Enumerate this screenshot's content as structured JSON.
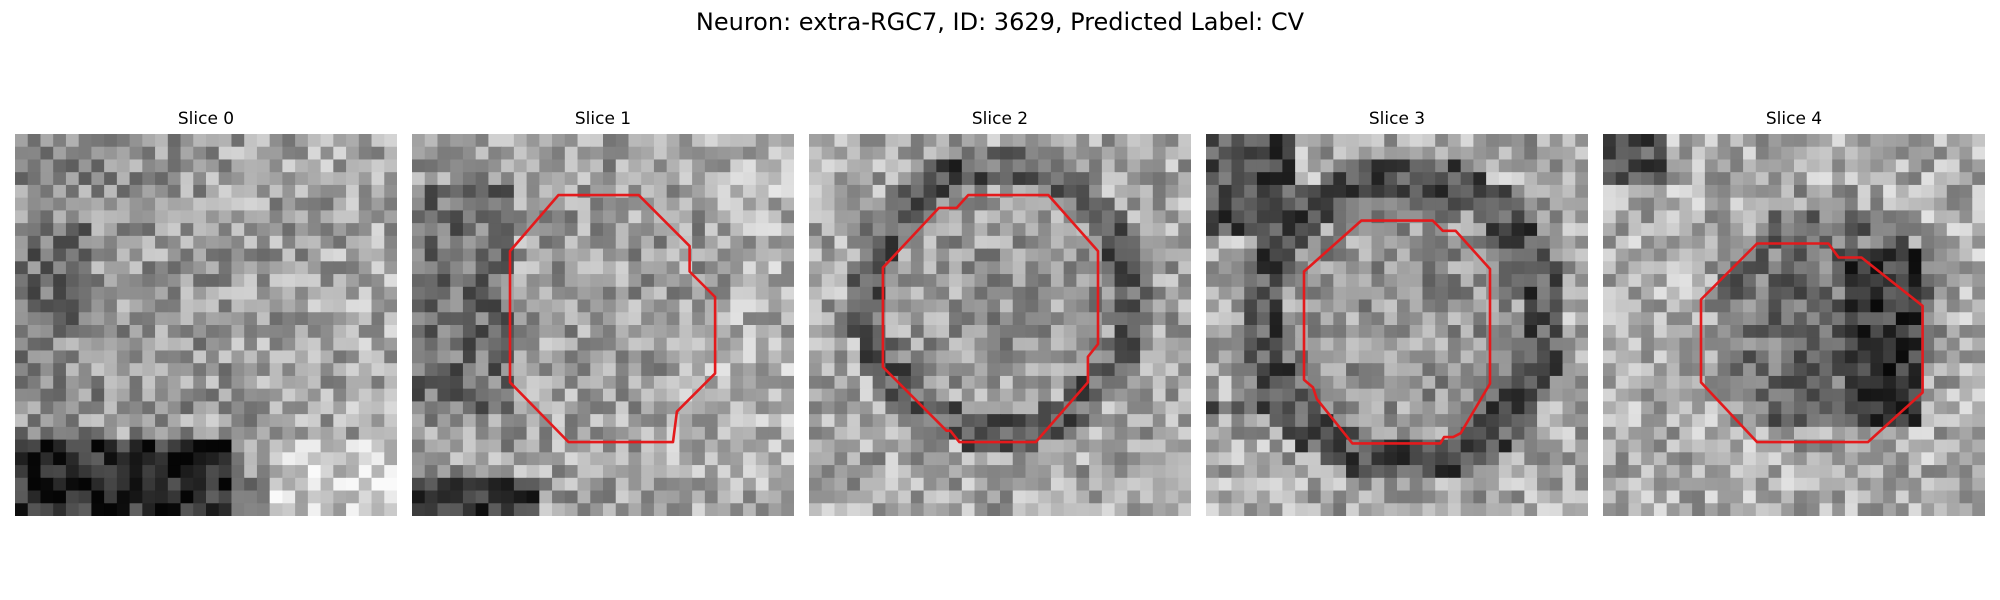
{
  "figure": {
    "title": "Neuron: extra-RGC7, ID: 3629, Predicted Label: CV"
  },
  "panels": [
    {
      "title": "Slice 0",
      "has_contour": false
    },
    {
      "title": "Slice 1",
      "has_contour": true
    },
    {
      "title": "Slice 2",
      "has_contour": true
    },
    {
      "title": "Slice 3",
      "has_contour": true
    },
    {
      "title": "Slice 4",
      "has_contour": true
    }
  ],
  "colors": {
    "contour": "#e41a1c",
    "background": "#ffffff"
  }
}
